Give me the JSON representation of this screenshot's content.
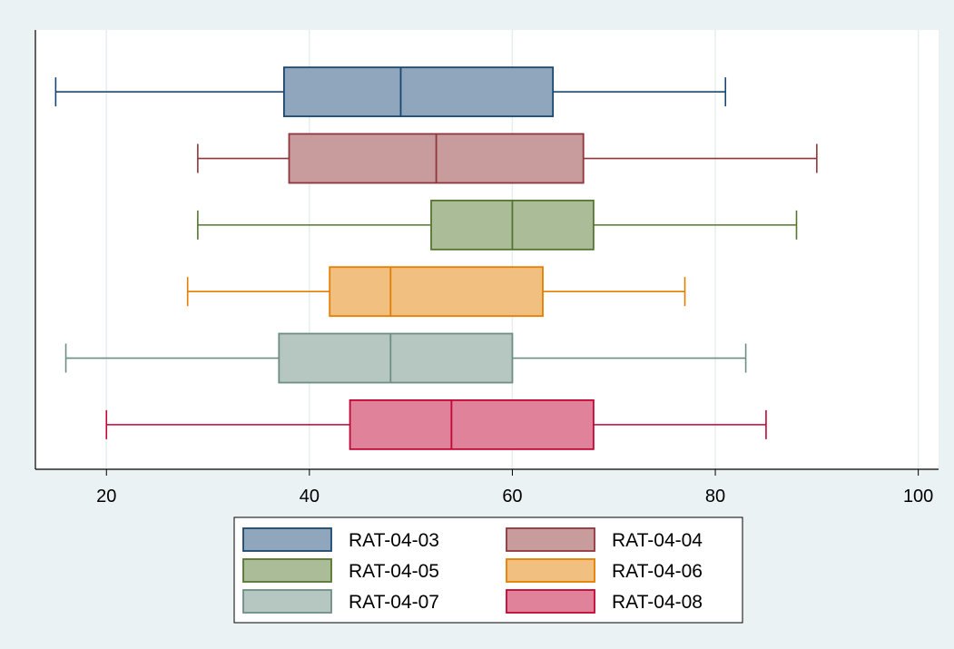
{
  "chart_data": {
    "type": "boxplot",
    "orientation": "horizontal",
    "title": "",
    "xlabel": "",
    "ylabel": "",
    "xlim": [
      13,
      102
    ],
    "x_ticks": [
      20,
      40,
      60,
      80,
      100
    ],
    "grid": true,
    "legend_position": "bottom",
    "series": [
      {
        "name": "RAT-04-03",
        "min": 15,
        "q1": 37.5,
        "median": 49,
        "q3": 64,
        "max": 81,
        "color": "#1a476f",
        "fill": "#90a6bc"
      },
      {
        "name": "RAT-04-04",
        "min": 29,
        "q1": 38,
        "median": 52.5,
        "q3": 67,
        "max": 90,
        "color": "#90353b",
        "fill": "#c89b9d"
      },
      {
        "name": "RAT-04-05",
        "min": 29,
        "q1": 52,
        "median": 60,
        "q3": 68,
        "max": 88,
        "color": "#55752f",
        "fill": "#aabc98"
      },
      {
        "name": "RAT-04-06",
        "min": 28,
        "q1": 42,
        "median": 48,
        "q3": 63,
        "max": 77,
        "color": "#e37e00",
        "fill": "#f1bf80"
      },
      {
        "name": "RAT-04-07",
        "min": 16,
        "q1": 37,
        "median": 48,
        "q3": 60,
        "max": 83,
        "color": "#6e8e84",
        "fill": "#b6c6c1"
      },
      {
        "name": "RAT-04-08",
        "min": 20,
        "q1": 44,
        "median": 54,
        "q3": 68,
        "max": 85,
        "color": "#c10534",
        "fill": "#e08299"
      }
    ]
  }
}
